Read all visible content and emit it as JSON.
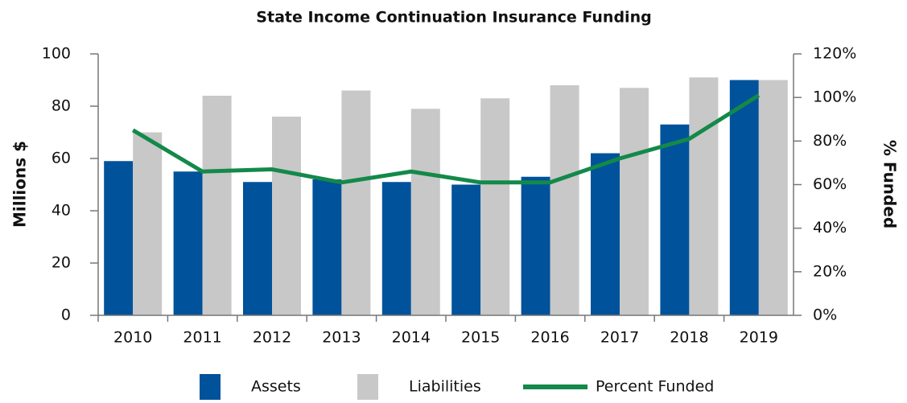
{
  "chart_data": {
    "type": "bar_line",
    "title": "State Income Continuation Insurance Funding",
    "ylabel": "Millions $",
    "y2label": "% Funded",
    "categories": [
      "2010",
      "2011",
      "2012",
      "2013",
      "2014",
      "2015",
      "2016",
      "2017",
      "2018",
      "2019"
    ],
    "series": [
      {
        "name": "Assets",
        "color": "#00529b",
        "type": "bar",
        "values": [
          59,
          55,
          51,
          52,
          51,
          50,
          53,
          62,
          73,
          90
        ]
      },
      {
        "name": "Liabilities",
        "color": "#c8c8c8",
        "type": "bar",
        "values": [
          70,
          84,
          76,
          86,
          79,
          83,
          88,
          87,
          91,
          90
        ]
      },
      {
        "name": "Percent Funded",
        "color": "#13894a",
        "type": "line",
        "axis": "y2",
        "values": [
          85,
          66,
          67,
          61,
          66,
          61,
          61,
          72,
          81,
          101
        ]
      }
    ],
    "ylim": [
      0,
      100
    ],
    "yticks": [
      0,
      20,
      40,
      60,
      80,
      100
    ],
    "y2lim": [
      0,
      120
    ],
    "y2ticks": [
      {
        "value": 0,
        "label": "0%"
      },
      {
        "value": 20,
        "label": "20%"
      },
      {
        "value": 40,
        "label": "40%"
      },
      {
        "value": 60,
        "label": "60%"
      },
      {
        "value": 80,
        "label": "80%"
      },
      {
        "value": 100,
        "label": "100%"
      },
      {
        "value": 120,
        "label": "120%"
      }
    ],
    "legend": "bottom"
  }
}
